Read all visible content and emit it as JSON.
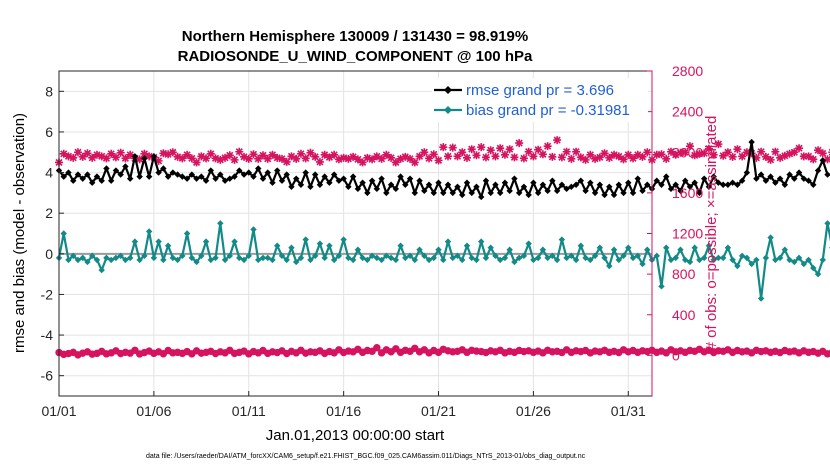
{
  "chart_data": {
    "type": "line",
    "title": "Northern Hemisphere 130009 / 131430 = 98.919%",
    "subtitle": "RADIOSONDE_U_WIND_COMPONENT @ 100 hPa",
    "xlabel": "Jan.01,2013 00:00:00 start",
    "ylabel_left": "rmse and bias (model - observation)",
    "ylabel_right": "# of obs: o=possible; ×=assimilated",
    "footnote": "data file: /Users/raeder/DAI/ATM_forcXX/CAM6_setup/f.e21.FHIST_BGC.f09_025.CAM6assim.011/Diags_NTrS_2013-01/obs_diag_output.nc",
    "x_ticks": [
      "01/01",
      "01/06",
      "01/11",
      "01/16",
      "01/21",
      "01/26",
      "01/31"
    ],
    "x_tick_days": [
      1,
      6,
      11,
      16,
      21,
      26,
      31
    ],
    "xlim": [
      1,
      32.25
    ],
    "ylim_left": [
      -7,
      9
    ],
    "y_ticks_left": [
      "-6",
      "-4",
      "-2",
      "0",
      "2",
      "4",
      "6",
      "8"
    ],
    "ylim_right": [
      -400,
      2800
    ],
    "y_ticks_right": [
      "0",
      "400",
      "800",
      "1200",
      "1600",
      "2000",
      "2400",
      "2800"
    ],
    "colors": {
      "rmse": "#000000",
      "bias": "#128a87",
      "obs": "#d6135f",
      "zero_line": "#9a9a9a",
      "legend_text": "#1f5fd6",
      "right_axis": "#d6135f"
    },
    "grid": true,
    "legend_position": "top-right",
    "legend": [
      {
        "name": "rmse",
        "label": "rmse grand pr = 3.696"
      },
      {
        "name": "bias",
        "label": "bias grand pr = -0.31981"
      }
    ],
    "x_start": 1.0,
    "x_step": 0.25,
    "series": [
      {
        "name": "rmse",
        "axis": "left",
        "values": [
          4.1,
          3.8,
          4.0,
          3.6,
          3.9,
          3.7,
          3.9,
          3.5,
          3.8,
          3.6,
          4.2,
          3.6,
          4.1,
          3.9,
          4.3,
          3.7,
          4.8,
          3.8,
          4.7,
          3.8,
          4.8,
          4.0,
          4.2,
          3.8,
          4.0,
          3.9,
          3.8,
          3.7,
          3.9,
          3.7,
          3.8,
          3.6,
          4.1,
          3.7,
          3.9,
          3.6,
          3.7,
          3.8,
          4.1,
          3.9,
          4.0,
          3.8,
          4.2,
          3.7,
          4.0,
          3.5,
          4.1,
          3.6,
          3.9,
          3.3,
          3.7,
          3.4,
          4.0,
          3.3,
          3.9,
          3.4,
          3.8,
          3.5,
          3.9,
          3.6,
          3.7,
          3.3,
          3.8,
          3.2,
          3.5,
          3.0,
          3.6,
          3.2,
          3.7,
          3.0,
          3.4,
          3.2,
          3.8,
          3.4,
          3.7,
          3.0,
          3.6,
          3.1,
          3.4,
          3.0,
          3.5,
          3.0,
          3.4,
          3.0,
          3.3,
          2.9,
          3.5,
          3.0,
          3.3,
          2.8,
          3.6,
          3.0,
          3.4,
          3.0,
          3.5,
          3.1,
          3.7,
          3.0,
          3.3,
          2.9,
          3.5,
          3.0,
          3.4,
          3.1,
          3.6,
          3.1,
          3.4,
          3.2,
          3.3,
          3.4,
          3.6,
          3.1,
          3.5,
          3.0,
          3.4,
          2.9,
          3.3,
          2.9,
          3.4,
          3.0,
          3.5,
          3.0,
          3.7,
          3.1,
          3.4,
          3.2,
          3.6,
          3.4,
          3.8,
          3.2,
          3.4,
          3.1,
          3.6,
          3.3,
          3.5,
          3.0,
          3.7,
          3.3,
          3.8,
          3.5,
          3.4,
          3.4,
          3.5,
          3.4,
          3.6,
          4.0,
          5.5,
          3.7,
          3.9,
          3.6,
          3.8,
          3.5,
          3.7,
          3.4,
          3.9,
          3.7,
          4.0,
          3.7,
          3.6,
          3.4,
          4.1,
          4.6,
          3.9,
          3.9,
          3.9
        ]
      },
      {
        "name": "bias",
        "axis": "left",
        "values": [
          -0.2,
          1.0,
          -0.3,
          -0.1,
          -0.3,
          -0.2,
          -0.4,
          -0.1,
          -0.3,
          -0.8,
          -0.2,
          -0.3,
          -0.2,
          -0.1,
          -0.3,
          -0.2,
          0.6,
          -0.3,
          -0.1,
          1.1,
          -0.2,
          0.6,
          -0.3,
          0.4,
          -0.2,
          -0.3,
          -0.1,
          1.0,
          -0.2,
          -0.4,
          -0.1,
          0.6,
          -0.3,
          -0.2,
          1.5,
          -0.3,
          -0.1,
          0.6,
          -0.2,
          -0.3,
          -0.1,
          1.2,
          -0.3,
          -0.2,
          -0.2,
          -0.3,
          0.4,
          -0.1,
          -0.3,
          0.3,
          -0.4,
          -0.2,
          0.7,
          -0.3,
          -0.1,
          0.5,
          -0.2,
          0.4,
          -0.3,
          -0.1,
          0.7,
          -0.2,
          -0.3,
          0.2,
          -0.2,
          -0.3,
          -0.1,
          -0.2,
          -0.3,
          -0.1,
          -0.2,
          -0.3,
          0.4,
          -0.2,
          -0.1,
          -0.3,
          0.2,
          -0.1,
          -0.3,
          -0.2,
          0.2,
          -0.3,
          0.6,
          -0.2,
          -0.1,
          -0.3,
          0.4,
          -0.2,
          -0.3,
          0.6,
          -0.2,
          0.3,
          -0.1,
          -0.3,
          -0.2,
          0.2,
          -0.4,
          -0.2,
          -0.1,
          0.5,
          -0.3,
          -0.2,
          0.2,
          -0.2,
          -0.1,
          -0.3,
          0.7,
          -0.2,
          -0.1,
          -0.3,
          0.4,
          -0.2,
          -0.3,
          -0.1,
          0.3,
          -0.2,
          -0.6,
          0.2,
          -0.3,
          -0.1,
          0.3,
          -0.2,
          -0.1,
          -0.5,
          0.2,
          -0.3,
          -0.1,
          -1.6,
          0.3,
          -0.3,
          -0.2,
          0.2,
          -0.3,
          -0.4,
          0.3,
          -0.3,
          -0.2,
          0.4,
          -0.3,
          -0.2,
          -0.2,
          0.3,
          -0.3,
          -0.6,
          -0.1,
          -0.2,
          -0.5,
          -0.3,
          -2.2,
          -0.2,
          0.8,
          -0.3,
          -0.2,
          0.2,
          -0.3,
          -0.4,
          -0.2,
          -0.5,
          -0.3,
          -0.7,
          -1.0,
          -0.3,
          1.5,
          0.3,
          -0.3,
          -0.7
        ]
      },
      {
        "name": "obs_possible",
        "axis": "right",
        "values": [
          28,
          10,
          18,
          30,
          5,
          22,
          35,
          12,
          20,
          40,
          15,
          25,
          45,
          18,
          30,
          22,
          50,
          14,
          28,
          42,
          20,
          35,
          16,
          48,
          25,
          30,
          20,
          38,
          15,
          45,
          22,
          30,
          40,
          18,
          35,
          25,
          50,
          20,
          30,
          42,
          15,
          38,
          25,
          48,
          20,
          35,
          28,
          45,
          18,
          40,
          25,
          50,
          22,
          35,
          30,
          45,
          20,
          38,
          25,
          55,
          28,
          42,
          35,
          60,
          30,
          48,
          40,
          75,
          25,
          55,
          35,
          65,
          30,
          50,
          40,
          70,
          35,
          55,
          25,
          48,
          30,
          60,
          45,
          35,
          40,
          55,
          30,
          50,
          42,
          38,
          28,
          45,
          35,
          50,
          25,
          40,
          30,
          48,
          38,
          45,
          30,
          42,
          25,
          50,
          35,
          40,
          28,
          55,
          30,
          45,
          38,
          48,
          25,
          42,
          35,
          50,
          30,
          40,
          28,
          55,
          35,
          48,
          30,
          45,
          38,
          50,
          30,
          42,
          25,
          55,
          35,
          45,
          30,
          48,
          40,
          60,
          35,
          50,
          28,
          45,
          40,
          55,
          30,
          48,
          35,
          42,
          25,
          50,
          38,
          45,
          30,
          40,
          28,
          48,
          35,
          42,
          25,
          45,
          30,
          38,
          22,
          40,
          15,
          30,
          10,
          25,
          5,
          -5,
          -20
        ]
      },
      {
        "name": "obs_assimilated",
        "axis": "right",
        "values": [
          1900,
          1985,
          1960,
          1945,
          2000,
          1955,
          1990,
          1945,
          1975,
          1960,
          1940,
          1985,
          1950,
          1995,
          1940,
          1975,
          1940,
          1930,
          1985,
          1960,
          1950,
          1915,
          1990,
          1980,
          2000,
          1955,
          1940,
          1975,
          1940,
          1900,
          1960,
          1940,
          1985,
          1940,
          1925,
          1945,
          1970,
          1925,
          2005,
          1955,
          1935,
          1980,
          1935,
          1970,
          1935,
          1975,
          1945,
          1935,
          1905,
          1960,
          1935,
          1985,
          1940,
          1995,
          1955,
          1905,
          1975,
          1950,
          1975,
          1930,
          1945,
          1935,
          1955,
          1930,
          1900,
          1945,
          1930,
          1960,
          1935,
          1975,
          1945,
          1900,
          1935,
          1955,
          1935,
          1900,
          1960,
          2000,
          1940,
          1980,
          1920,
          2050,
          1960,
          2045,
          1960,
          2000,
          1945,
          2030,
          1970,
          2050,
          1950,
          2020,
          1960,
          2040,
          1975,
          2030,
          1950,
          2090,
          1940,
          2005,
          1960,
          2025,
          1980,
          2060,
          1955,
          2120,
          1950,
          2005,
          1935,
          2005,
          1950,
          1925,
          1975,
          1935,
          1950,
          1990,
          1945,
          1975,
          1960,
          1930,
          1975,
          1940,
          1975,
          1955,
          2000,
          1925,
          1975,
          1980,
          1935,
          2005,
          1975,
          1995,
          2000,
          2060,
          1970,
          1985,
          1990,
          2035,
          1975,
          2080,
          1965,
          2000,
          1955,
          2030,
          1960,
          2000,
          1990,
          1945,
          2005,
          1955,
          1925,
          2005,
          1945,
          1965,
          1985,
          2000,
          2040,
          1960,
          1960,
          1930,
          2020,
          1990,
          1930,
          2000,
          1860,
          1990,
          2040,
          1920,
          1890,
          1950,
          1980
        ]
      }
    ]
  }
}
